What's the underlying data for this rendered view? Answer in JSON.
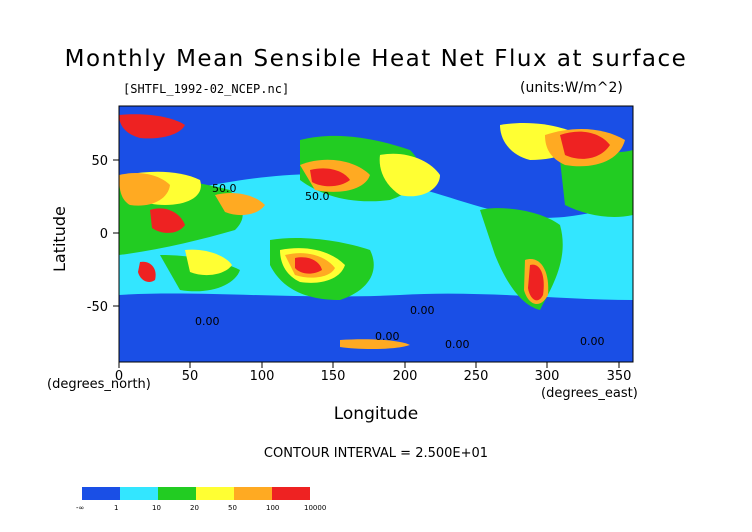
{
  "title": "Monthly Mean Sensible Heat Net Flux at surface",
  "file_label": "[SHTFL_1992-02_NCEP.nc]",
  "units": "(units:W/m^2)",
  "ylabel": "Latitude",
  "xlabel": "Longitude",
  "x_unit_left": "(degrees_north)",
  "x_unit_right": "(degrees_east)",
  "contour_interval": "CONTOUR INTERVAL = 2.500E+01",
  "yticks": [
    "50",
    "0",
    "-50"
  ],
  "xticks": [
    "0",
    "50",
    "100",
    "150",
    "200",
    "250",
    "300",
    "350"
  ],
  "contour_labels": [
    "50.0",
    "50.0",
    "0.00",
    "0.00",
    "0.00",
    "0.00",
    "0.00"
  ],
  "colorbar": {
    "colors": [
      "#1a4fe6",
      "#33e6ff",
      "#22cc22",
      "#ffff33",
      "#ffaa22",
      "#ee2222"
    ],
    "labels": [
      "-∞",
      "1",
      "10",
      "20",
      "50",
      "100",
      "10000"
    ]
  },
  "map_colors": {
    "ocean_low": "#1a4fe6",
    "cyan": "#33e6ff",
    "green": "#22cc22",
    "yellow": "#ffff33",
    "orange": "#ffaa22",
    "red": "#ee2222"
  }
}
